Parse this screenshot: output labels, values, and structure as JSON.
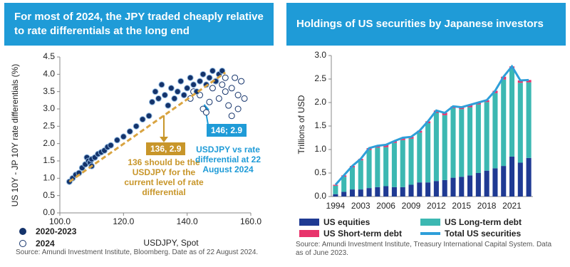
{
  "chart_data": [
    {
      "type": "scatter",
      "title": "For most of 2024, the JPY traded cheaply relative to rate differentials at the long end",
      "y_label": "US 10Y - JP 10Y rate differentials (%)",
      "x_label": "USDJPY, Spot",
      "xlim": [
        100,
        160
      ],
      "xticks": [
        {
          "value": 100,
          "label": "100.0"
        },
        {
          "value": 120,
          "label": "120.0"
        },
        {
          "value": 140,
          "label": "140.0"
        },
        {
          "value": 160,
          "label": "160.0"
        }
      ],
      "ylim": [
        0,
        4.5
      ],
      "yticks": [
        {
          "value": 0,
          "label": "0.0"
        },
        {
          "value": 0.5,
          "label": "0.5"
        },
        {
          "value": 1,
          "label": "1.0"
        },
        {
          "value": 1.5,
          "label": "1.5"
        },
        {
          "value": 2,
          "label": "2.0"
        },
        {
          "value": 2.5,
          "label": "2.5"
        },
        {
          "value": 3,
          "label": "3.0"
        },
        {
          "value": 3.5,
          "label": "3.5"
        },
        {
          "value": 4,
          "label": "4.0"
        },
        {
          "value": 4.5,
          "label": "4.5"
        }
      ],
      "series": [
        {
          "name": "2020-2023",
          "color": "#14336b",
          "marker": "filled",
          "x": [
            103,
            104,
            105,
            106,
            107,
            108,
            108.5,
            109,
            109.5,
            110,
            110,
            111,
            112,
            113,
            114,
            115,
            116,
            118,
            120,
            122,
            124,
            126,
            128,
            129,
            130,
            131,
            132,
            133,
            134,
            135,
            136,
            137,
            138,
            139,
            140,
            141,
            142,
            143,
            144,
            145,
            146,
            147,
            148,
            149,
            150,
            151
          ],
          "values": [
            0.9,
            1.0,
            1.1,
            1.15,
            1.3,
            1.4,
            1.6,
            1.5,
            1.45,
            1.55,
            1.35,
            1.6,
            1.7,
            1.75,
            1.8,
            1.9,
            1.95,
            2.1,
            2.2,
            2.35,
            2.5,
            2.7,
            2.8,
            3.2,
            3.5,
            3.3,
            3.7,
            3.4,
            3.1,
            3.6,
            3.3,
            3.5,
            3.8,
            3.4,
            3.6,
            3.9,
            3.7,
            3.5,
            3.8,
            4.0,
            3.7,
            3.9,
            4.1,
            3.8,
            4.0,
            4.1
          ]
        },
        {
          "name": "2024",
          "color": "#14336b",
          "marker": "hollow",
          "x": [
            141,
            142,
            144,
            145,
            146,
            147,
            148,
            149,
            150,
            151,
            152,
            153,
            154,
            155,
            156,
            157,
            158,
            156,
            154,
            152
          ],
          "values": [
            3.3,
            3.5,
            3.4,
            3.0,
            2.9,
            3.2,
            3.6,
            3.8,
            3.3,
            3.7,
            3.5,
            3.1,
            3.6,
            3.9,
            3.4,
            3.8,
            3.3,
            3.0,
            2.8,
            3.9
          ]
        }
      ],
      "trend": {
        "x": [
          103,
          152
        ],
        "values": [
          0.9,
          4.05
        ],
        "color": "#d9a441"
      },
      "annotations": [
        {
          "text": "136, 2.9",
          "color": "#c8962a",
          "boxed": true
        },
        {
          "text": "136 should be the USDJPY for the current level of rate differential",
          "color": "#c8962a",
          "boxed": false
        },
        {
          "text": "146; 2.9",
          "color": "#1f9bd7",
          "boxed": true
        },
        {
          "text": "USDJPY vs rate differential at 22 August 2024",
          "color": "#1f9bd7",
          "boxed": false
        }
      ],
      "source": "Source: Amundi Investment Institute, Bloomberg. Date as of 22 August 2024."
    },
    {
      "type": "bar",
      "title": "Holdings of US securities by Japanese investors",
      "y_label": "Trillions of USD",
      "categories": [
        "1994",
        null,
        null,
        "2003",
        null,
        null,
        "2006",
        null,
        null,
        "2009",
        null,
        null,
        "2012",
        null,
        null,
        "2015",
        null,
        null,
        "2018",
        null,
        null,
        "2021",
        null,
        null
      ],
      "ylim": [
        0,
        3
      ],
      "yticks": [
        {
          "value": 0,
          "label": "0.0"
        },
        {
          "value": 0.5,
          "label": "0.5"
        },
        {
          "value": 1,
          "label": "1.0"
        },
        {
          "value": 1.5,
          "label": "1.5"
        },
        {
          "value": 2,
          "label": "2.0"
        },
        {
          "value": 2.5,
          "label": "2.5"
        },
        {
          "value": 3,
          "label": "3.0"
        }
      ],
      "series": [
        {
          "name": "US equities",
          "color": "#1f3a93",
          "type": "bar",
          "values": [
            0.05,
            0.1,
            0.15,
            0.15,
            0.18,
            0.2,
            0.22,
            0.2,
            0.2,
            0.25,
            0.3,
            0.3,
            0.33,
            0.35,
            0.4,
            0.42,
            0.45,
            0.5,
            0.55,
            0.6,
            0.65,
            0.85,
            0.72,
            0.82
          ]
        },
        {
          "name": "US Long-term debt",
          "color": "#3cb8b2",
          "type": "bar",
          "values": [
            0.18,
            0.32,
            0.47,
            0.62,
            0.81,
            0.84,
            0.83,
            0.94,
            1.0,
            0.98,
            1.06,
            1.26,
            1.45,
            1.38,
            1.48,
            1.44,
            1.45,
            1.46,
            1.46,
            1.6,
            1.84,
            1.87,
            1.7,
            1.61
          ]
        },
        {
          "name": "US Short-term debt",
          "color": "#e8336b",
          "type": "bar",
          "values": [
            0.02,
            0.03,
            0.03,
            0.03,
            0.04,
            0.04,
            0.05,
            0.04,
            0.05,
            0.04,
            0.04,
            0.04,
            0.05,
            0.05,
            0.04,
            0.04,
            0.05,
            0.04,
            0.04,
            0.05,
            0.06,
            0.05,
            0.05,
            0.05
          ]
        },
        {
          "name": "Total US securities",
          "color": "#2e9fd9",
          "type": "line",
          "values": [
            0.25,
            0.45,
            0.65,
            0.8,
            1.03,
            1.08,
            1.1,
            1.18,
            1.25,
            1.27,
            1.4,
            1.6,
            1.83,
            1.78,
            1.92,
            1.9,
            1.95,
            2.0,
            2.05,
            2.25,
            2.55,
            2.77,
            2.47,
            2.48
          ]
        }
      ],
      "source": "Source: Amundi Investment Institute, Treasury International Capital System. Data as of June 2023."
    }
  ]
}
